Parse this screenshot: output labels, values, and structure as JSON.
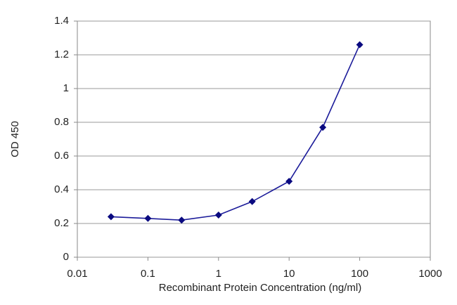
{
  "chart_data": {
    "type": "line",
    "x_label": "Recombinant Protein Concentration (ng/ml)",
    "y_label": "OD 450",
    "x": [
      0.03,
      0.1,
      0.3,
      1,
      3,
      10,
      30,
      100
    ],
    "values": [
      0.24,
      0.23,
      0.22,
      0.25,
      0.33,
      0.45,
      0.77,
      1.26
    ],
    "color": "#1c1c9a",
    "xscale": "log",
    "xlim": [
      0.01,
      1000
    ],
    "xticks": [
      0.01,
      0.1,
      1,
      10,
      100,
      1000
    ],
    "ylim": [
      0,
      1.4
    ],
    "yticks": [
      0,
      0.2,
      0.4,
      0.6,
      0.8,
      1,
      1.2,
      1.4
    ],
    "grid": true
  }
}
